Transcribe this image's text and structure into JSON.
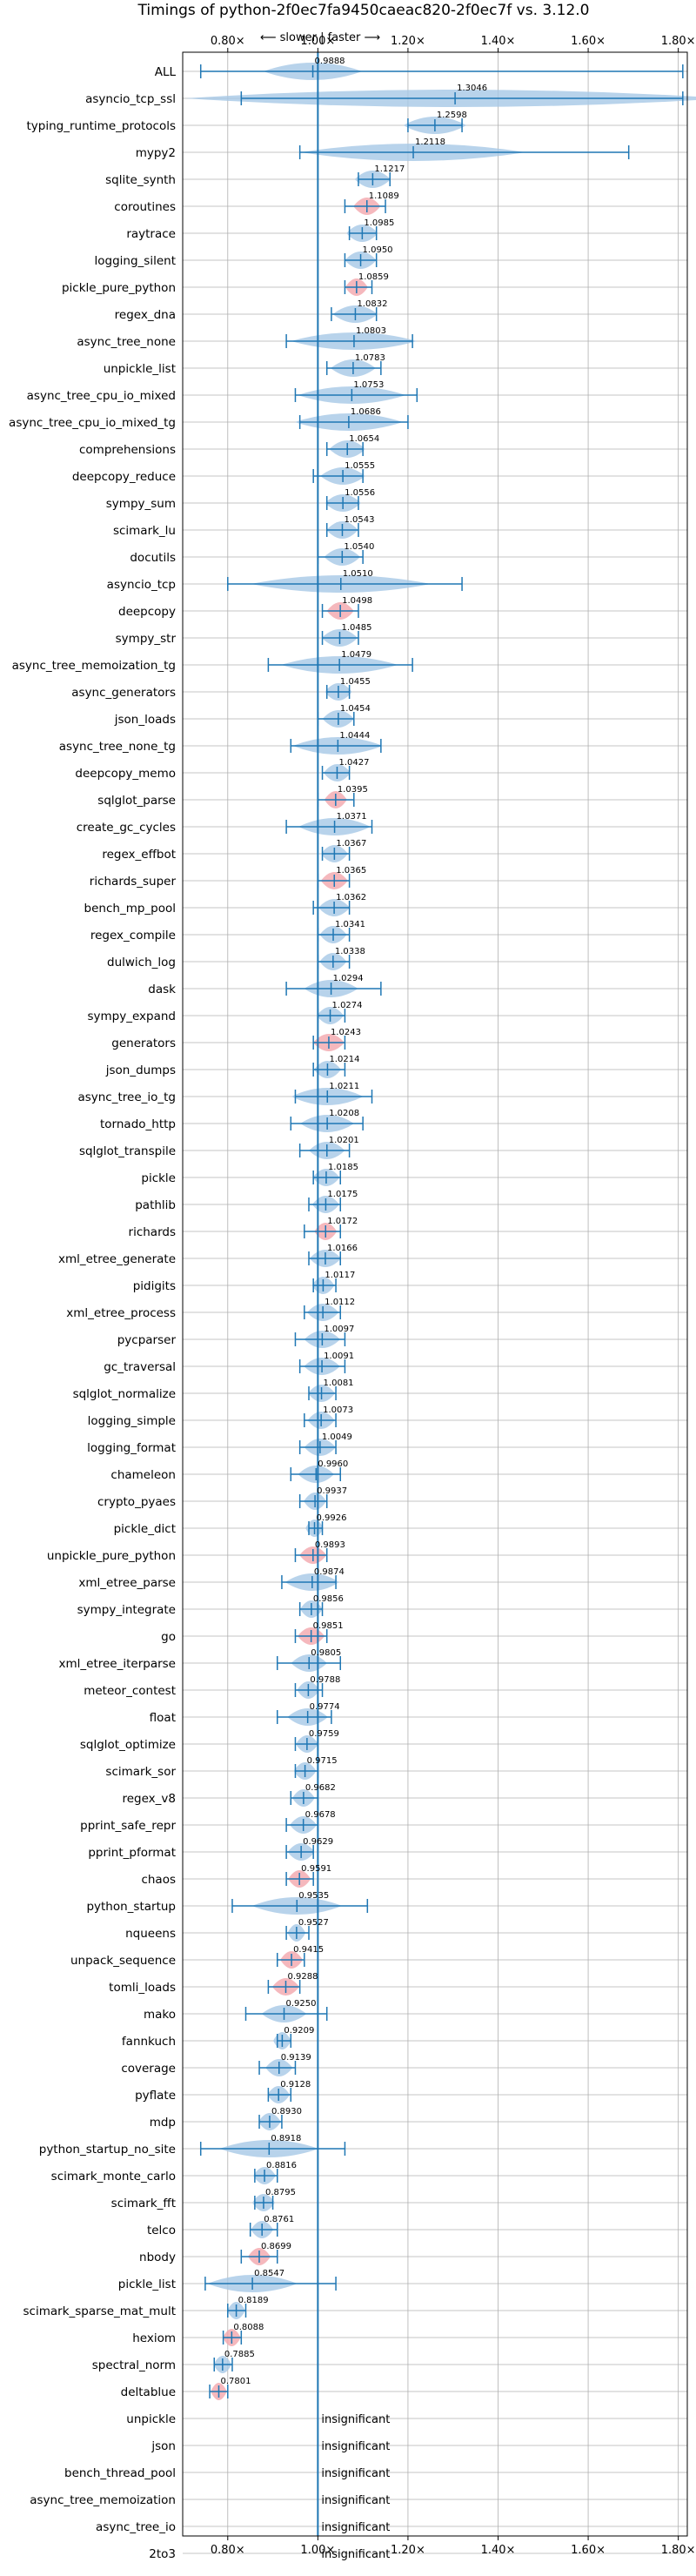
{
  "chart_data": {
    "type": "violin",
    "title": "Timings of python-2f0ec7fa9450caeac820-2f0ec7f vs. 3.12.0",
    "subtitle": "⟵ slower | faster ⟶",
    "xlim": [
      0.7,
      1.82
    ],
    "x_ticks": [
      0.8,
      1.0,
      1.2,
      1.4,
      1.6,
      1.8
    ],
    "x_tick_labels": [
      "0.80×",
      "1.00×",
      "1.20×",
      "1.40×",
      "1.60×",
      "1.80×"
    ],
    "reference_x": 1.0,
    "grid": true,
    "colors": {
      "violin": "#a6c8e6",
      "highlight": "#f2a6ad",
      "line": "#1f77b4"
    },
    "insignificant_label": "insignificant",
    "benchmarks": [
      {
        "name": "ALL",
        "mean": 0.9888,
        "label": "0.9888",
        "min": 0.74,
        "max": 1.81,
        "width": 0.11
      },
      {
        "name": "asyncio_tcp_ssl",
        "mean": 1.3046,
        "label": "1.3046",
        "min": 0.83,
        "max": 1.81,
        "width": 0.6
      },
      {
        "name": "typing_runtime_protocols",
        "mean": 1.2598,
        "label": "1.2598",
        "min": 1.2,
        "max": 1.32,
        "width": 0.07
      },
      {
        "name": "mypy2",
        "mean": 1.2118,
        "label": "1.2118",
        "min": 0.96,
        "max": 1.69,
        "width": 0.25
      },
      {
        "name": "sqlite_synth",
        "mean": 1.1217,
        "label": "1.1217",
        "min": 1.09,
        "max": 1.16,
        "width": 0.04
      },
      {
        "name": "coroutines",
        "mean": 1.1089,
        "label": "1.1089",
        "min": 1.06,
        "max": 1.15,
        "width": 0.03,
        "highlight": true
      },
      {
        "name": "raytrace",
        "mean": 1.0985,
        "label": "1.0985",
        "min": 1.07,
        "max": 1.13,
        "width": 0.035
      },
      {
        "name": "logging_silent",
        "mean": 1.095,
        "label": "1.0950",
        "min": 1.06,
        "max": 1.13,
        "width": 0.035
      },
      {
        "name": "pickle_pure_python",
        "mean": 1.0859,
        "label": "1.0859",
        "min": 1.06,
        "max": 1.12,
        "width": 0.025,
        "highlight": true
      },
      {
        "name": "regex_dna",
        "mean": 1.0832,
        "label": "1.0832",
        "min": 1.03,
        "max": 1.13,
        "width": 0.05
      },
      {
        "name": "async_tree_none",
        "mean": 1.0803,
        "label": "1.0803",
        "min": 0.93,
        "max": 1.21,
        "width": 0.14
      },
      {
        "name": "unpickle_list",
        "mean": 1.0783,
        "label": "1.0783",
        "min": 1.02,
        "max": 1.14,
        "width": 0.05
      },
      {
        "name": "async_tree_cpu_io_mixed",
        "mean": 1.0753,
        "label": "1.0753",
        "min": 0.95,
        "max": 1.22,
        "width": 0.12
      },
      {
        "name": "async_tree_cpu_io_mixed_tg",
        "mean": 1.0686,
        "label": "1.0686",
        "min": 0.96,
        "max": 1.2,
        "width": 0.12
      },
      {
        "name": "comprehensions",
        "mean": 1.0654,
        "label": "1.0654",
        "min": 1.02,
        "max": 1.1,
        "width": 0.04
      },
      {
        "name": "deepcopy_reduce",
        "mean": 1.0555,
        "label": "1.0555",
        "min": 0.99,
        "max": 1.1,
        "width": 0.05
      },
      {
        "name": "sympy_sum",
        "mean": 1.0556,
        "label": "1.0556",
        "min": 1.02,
        "max": 1.09,
        "width": 0.04
      },
      {
        "name": "scimark_lu",
        "mean": 1.0543,
        "label": "1.0543",
        "min": 1.02,
        "max": 1.09,
        "width": 0.035
      },
      {
        "name": "docutils",
        "mean": 1.054,
        "label": "1.0540",
        "min": 1.0,
        "max": 1.1,
        "width": 0.04
      },
      {
        "name": "asyncio_tcp",
        "mean": 1.051,
        "label": "1.0510",
        "min": 0.8,
        "max": 1.32,
        "width": 0.2
      },
      {
        "name": "deepcopy",
        "mean": 1.0498,
        "label": "1.0498",
        "min": 1.01,
        "max": 1.09,
        "width": 0.03,
        "highlight": true
      },
      {
        "name": "sympy_str",
        "mean": 1.0485,
        "label": "1.0485",
        "min": 1.01,
        "max": 1.09,
        "width": 0.04
      },
      {
        "name": "async_tree_memoization_tg",
        "mean": 1.0479,
        "label": "1.0479",
        "min": 0.89,
        "max": 1.21,
        "width": 0.13
      },
      {
        "name": "async_generators",
        "mean": 1.0455,
        "label": "1.0455",
        "min": 1.02,
        "max": 1.07,
        "width": 0.03
      },
      {
        "name": "json_loads",
        "mean": 1.0454,
        "label": "1.0454",
        "min": 1.0,
        "max": 1.08,
        "width": 0.035
      },
      {
        "name": "async_tree_none_tg",
        "mean": 1.0444,
        "label": "1.0444",
        "min": 0.94,
        "max": 1.14,
        "width": 0.1
      },
      {
        "name": "deepcopy_memo",
        "mean": 1.0427,
        "label": "1.0427",
        "min": 1.01,
        "max": 1.07,
        "width": 0.03
      },
      {
        "name": "sqlglot_parse",
        "mean": 1.0395,
        "label": "1.0395",
        "min": 1.0,
        "max": 1.08,
        "width": 0.025,
        "highlight": true
      },
      {
        "name": "create_gc_cycles",
        "mean": 1.0371,
        "label": "1.0371",
        "min": 0.93,
        "max": 1.12,
        "width": 0.08
      },
      {
        "name": "regex_effbot",
        "mean": 1.0367,
        "label": "1.0367",
        "min": 1.01,
        "max": 1.07,
        "width": 0.03
      },
      {
        "name": "richards_super",
        "mean": 1.0365,
        "label": "1.0365",
        "min": 1.0,
        "max": 1.07,
        "width": 0.03,
        "highlight": true
      },
      {
        "name": "bench_mp_pool",
        "mean": 1.0362,
        "label": "1.0362",
        "min": 0.99,
        "max": 1.07,
        "width": 0.035
      },
      {
        "name": "regex_compile",
        "mean": 1.0341,
        "label": "1.0341",
        "min": 1.0,
        "max": 1.07,
        "width": 0.03
      },
      {
        "name": "dulwich_log",
        "mean": 1.0338,
        "label": "1.0338",
        "min": 1.0,
        "max": 1.07,
        "width": 0.03
      },
      {
        "name": "dask",
        "mean": 1.0294,
        "label": "1.0294",
        "min": 0.93,
        "max": 1.14,
        "width": 0.06
      },
      {
        "name": "sympy_expand",
        "mean": 1.0274,
        "label": "1.0274",
        "min": 1.0,
        "max": 1.06,
        "width": 0.03
      },
      {
        "name": "generators",
        "mean": 1.0243,
        "label": "1.0243",
        "min": 0.99,
        "max": 1.06,
        "width": 0.035,
        "highlight": true
      },
      {
        "name": "json_dumps",
        "mean": 1.0214,
        "label": "1.0214",
        "min": 0.99,
        "max": 1.06,
        "width": 0.03
      },
      {
        "name": "async_tree_io_tg",
        "mean": 1.0211,
        "label": "1.0211",
        "min": 0.95,
        "max": 1.12,
        "width": 0.08
      },
      {
        "name": "tornado_http",
        "mean": 1.0208,
        "label": "1.0208",
        "min": 0.94,
        "max": 1.1,
        "width": 0.06
      },
      {
        "name": "sqlglot_transpile",
        "mean": 1.0201,
        "label": "1.0201",
        "min": 0.96,
        "max": 1.07,
        "width": 0.04
      },
      {
        "name": "pickle",
        "mean": 1.0185,
        "label": "1.0185",
        "min": 0.99,
        "max": 1.05,
        "width": 0.03
      },
      {
        "name": "pathlib",
        "mean": 1.0175,
        "label": "1.0175",
        "min": 0.98,
        "max": 1.05,
        "width": 0.03
      },
      {
        "name": "richards",
        "mean": 1.0172,
        "label": "1.0172",
        "min": 0.97,
        "max": 1.05,
        "width": 0.025,
        "highlight": true
      },
      {
        "name": "xml_etree_generate",
        "mean": 1.0166,
        "label": "1.0166",
        "min": 0.98,
        "max": 1.05,
        "width": 0.035
      },
      {
        "name": "pidigits",
        "mean": 1.0117,
        "label": "1.0117",
        "min": 0.99,
        "max": 1.04,
        "width": 0.025
      },
      {
        "name": "xml_etree_process",
        "mean": 1.0112,
        "label": "1.0112",
        "min": 0.97,
        "max": 1.05,
        "width": 0.035
      },
      {
        "name": "pycparser",
        "mean": 1.0097,
        "label": "1.0097",
        "min": 0.95,
        "max": 1.06,
        "width": 0.04
      },
      {
        "name": "gc_traversal",
        "mean": 1.0091,
        "label": "1.0091",
        "min": 0.96,
        "max": 1.06,
        "width": 0.04
      },
      {
        "name": "sqlglot_normalize",
        "mean": 1.0081,
        "label": "1.0081",
        "min": 0.98,
        "max": 1.04,
        "width": 0.03
      },
      {
        "name": "logging_simple",
        "mean": 1.0073,
        "label": "1.0073",
        "min": 0.97,
        "max": 1.04,
        "width": 0.03
      },
      {
        "name": "logging_format",
        "mean": 1.0049,
        "label": "1.0049",
        "min": 0.96,
        "max": 1.04,
        "width": 0.035
      },
      {
        "name": "chameleon",
        "mean": 0.996,
        "label": "0.9960",
        "min": 0.94,
        "max": 1.05,
        "width": 0.04
      },
      {
        "name": "crypto_pyaes",
        "mean": 0.9937,
        "label": "0.9937",
        "min": 0.96,
        "max": 1.02,
        "width": 0.025
      },
      {
        "name": "pickle_dict",
        "mean": 0.9926,
        "label": "0.9926",
        "min": 0.98,
        "max": 1.01,
        "width": 0.02
      },
      {
        "name": "unpickle_pure_python",
        "mean": 0.9893,
        "label": "0.9893",
        "min": 0.95,
        "max": 1.02,
        "width": 0.03,
        "highlight": true
      },
      {
        "name": "xml_etree_parse",
        "mean": 0.9874,
        "label": "0.9874",
        "min": 0.92,
        "max": 1.04,
        "width": 0.06
      },
      {
        "name": "sympy_integrate",
        "mean": 0.9856,
        "label": "0.9856",
        "min": 0.96,
        "max": 1.01,
        "width": 0.025
      },
      {
        "name": "go",
        "mean": 0.9851,
        "label": "0.9851",
        "min": 0.95,
        "max": 1.02,
        "width": 0.03,
        "highlight": true
      },
      {
        "name": "xml_etree_iterparse",
        "mean": 0.9805,
        "label": "0.9805",
        "min": 0.91,
        "max": 1.05,
        "width": 0.04
      },
      {
        "name": "meteor_contest",
        "mean": 0.9788,
        "label": "0.9788",
        "min": 0.95,
        "max": 1.01,
        "width": 0.025
      },
      {
        "name": "float",
        "mean": 0.9774,
        "label": "0.9774",
        "min": 0.91,
        "max": 1.03,
        "width": 0.045
      },
      {
        "name": "sqlglot_optimize",
        "mean": 0.9759,
        "label": "0.9759",
        "min": 0.95,
        "max": 1.0,
        "width": 0.025
      },
      {
        "name": "scimark_sor",
        "mean": 0.9715,
        "label": "0.9715",
        "min": 0.95,
        "max": 1.0,
        "width": 0.025
      },
      {
        "name": "regex_v8",
        "mean": 0.9682,
        "label": "0.9682",
        "min": 0.94,
        "max": 1.0,
        "width": 0.025
      },
      {
        "name": "pprint_safe_repr",
        "mean": 0.9678,
        "label": "0.9678",
        "min": 0.93,
        "max": 1.0,
        "width": 0.03
      },
      {
        "name": "pprint_pformat",
        "mean": 0.9629,
        "label": "0.9629",
        "min": 0.93,
        "max": 0.99,
        "width": 0.03
      },
      {
        "name": "chaos",
        "mean": 0.9591,
        "label": "0.9591",
        "min": 0.93,
        "max": 0.99,
        "width": 0.025,
        "highlight": true
      },
      {
        "name": "python_startup",
        "mean": 0.9535,
        "label": "0.9535",
        "min": 0.81,
        "max": 1.11,
        "width": 0.1
      },
      {
        "name": "nqueens",
        "mean": 0.9527,
        "label": "0.9527",
        "min": 0.93,
        "max": 0.98,
        "width": 0.02
      },
      {
        "name": "unpack_sequence",
        "mean": 0.9415,
        "label": "0.9415",
        "min": 0.91,
        "max": 0.97,
        "width": 0.025,
        "highlight": true
      },
      {
        "name": "tomli_loads",
        "mean": 0.9288,
        "label": "0.9288",
        "min": 0.89,
        "max": 0.96,
        "width": 0.03,
        "highlight": true
      },
      {
        "name": "mako",
        "mean": 0.925,
        "label": "0.9250",
        "min": 0.84,
        "max": 1.02,
        "width": 0.05
      },
      {
        "name": "fannkuch",
        "mean": 0.9209,
        "label": "0.9209",
        "min": 0.91,
        "max": 0.94,
        "width": 0.02
      },
      {
        "name": "coverage",
        "mean": 0.9139,
        "label": "0.9139",
        "min": 0.87,
        "max": 0.95,
        "width": 0.03
      },
      {
        "name": "pyflate",
        "mean": 0.9128,
        "label": "0.9128",
        "min": 0.89,
        "max": 0.94,
        "width": 0.025
      },
      {
        "name": "mdp",
        "mean": 0.893,
        "label": "0.8930",
        "min": 0.87,
        "max": 0.92,
        "width": 0.025
      },
      {
        "name": "python_startup_no_site",
        "mean": 0.8918,
        "label": "0.8918",
        "min": 0.74,
        "max": 1.06,
        "width": 0.11
      },
      {
        "name": "scimark_monte_carlo",
        "mean": 0.8816,
        "label": "0.8816",
        "min": 0.86,
        "max": 0.91,
        "width": 0.025
      },
      {
        "name": "scimark_fft",
        "mean": 0.8795,
        "label": "0.8795",
        "min": 0.86,
        "max": 0.9,
        "width": 0.025
      },
      {
        "name": "telco",
        "mean": 0.8761,
        "label": "0.8761",
        "min": 0.85,
        "max": 0.91,
        "width": 0.025
      },
      {
        "name": "nbody",
        "mean": 0.8699,
        "label": "0.8699",
        "min": 0.83,
        "max": 0.91,
        "width": 0.025,
        "highlight": true
      },
      {
        "name": "pickle_list",
        "mean": 0.8547,
        "label": "0.8547",
        "min": 0.75,
        "max": 1.04,
        "width": 0.1
      },
      {
        "name": "scimark_sparse_mat_mult",
        "mean": 0.8189,
        "label": "0.8189",
        "min": 0.8,
        "max": 0.84,
        "width": 0.02
      },
      {
        "name": "hexiom",
        "mean": 0.8088,
        "label": "0.8088",
        "min": 0.79,
        "max": 0.83,
        "width": 0.02,
        "highlight": true
      },
      {
        "name": "spectral_norm",
        "mean": 0.7885,
        "label": "0.7885",
        "min": 0.77,
        "max": 0.81,
        "width": 0.02
      },
      {
        "name": "deltablue",
        "mean": 0.7801,
        "label": "0.7801",
        "min": 0.76,
        "max": 0.8,
        "width": 0.018,
        "highlight": true
      },
      {
        "name": "unpickle",
        "insignificant": true
      },
      {
        "name": "json",
        "insignificant": true
      },
      {
        "name": "bench_thread_pool",
        "insignificant": true
      },
      {
        "name": "async_tree_memoization",
        "insignificant": true
      },
      {
        "name": "async_tree_io",
        "insignificant": true
      },
      {
        "name": "2to3",
        "insignificant": true
      }
    ]
  }
}
